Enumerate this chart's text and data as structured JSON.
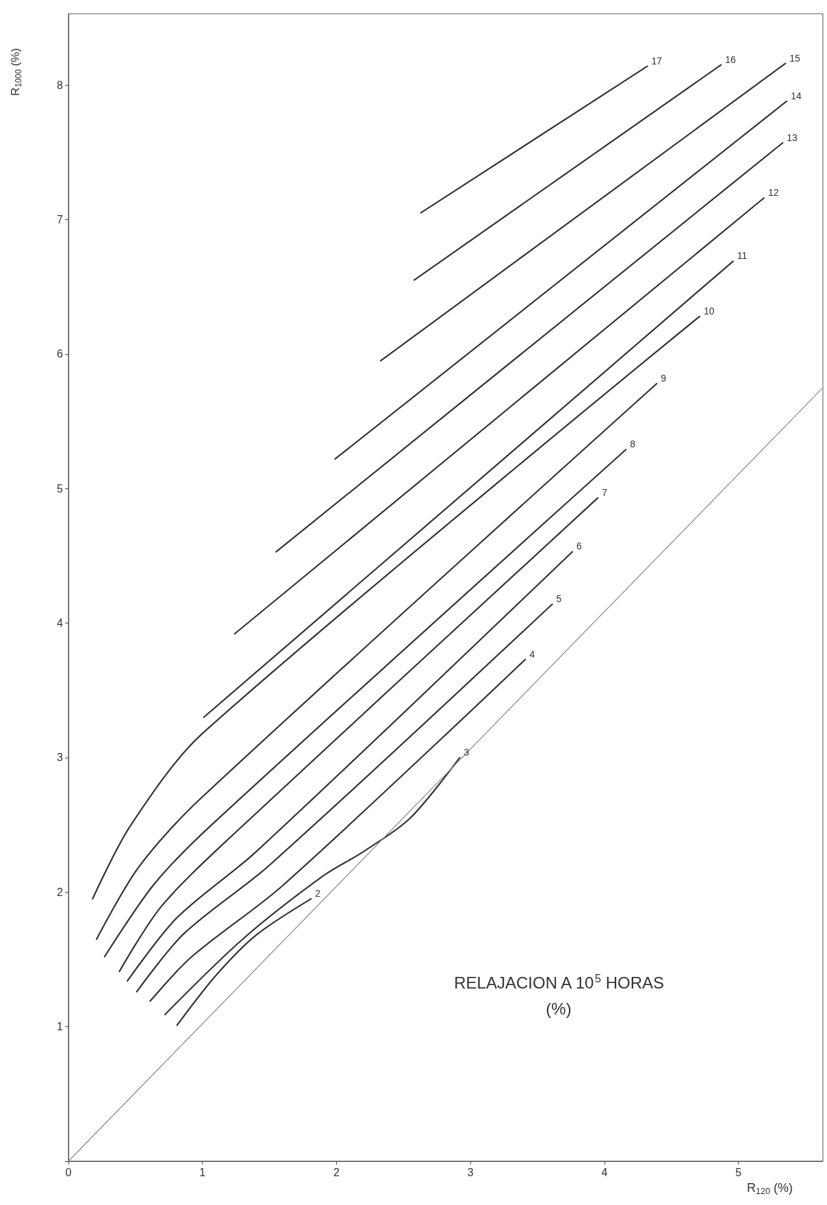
{
  "chart_data": {
    "type": "line",
    "xlabel": "R$_{120}$ (%)",
    "ylabel": "R$_{1000}$ (%)",
    "marker": "none",
    "grid": false,
    "legend": false,
    "xlim": [
      0,
      5.63
    ],
    "ylim": [
      0,
      8.53
    ],
    "xticks": [
      0,
      1,
      2,
      3,
      4,
      5
    ],
    "yticks": [
      {
        "value": 0,
        "label": null
      },
      1,
      2,
      3,
      4,
      5,
      6,
      7,
      8
    ],
    "annotations": [
      "RELAJACION A 10$^{5}$ HORAS",
      "(%)"
    ],
    "series": [
      {
        "name": "2",
        "color": "#333333",
        "x": [
          0.81,
          1.1,
          1.4,
          1.81
        ],
        "values": [
          1.01,
          1.38,
          1.68,
          1.95
        ]
      },
      {
        "name": "3",
        "color": "#333333",
        "x": [
          0.72,
          1.3,
          1.9,
          2.2,
          2.55,
          2.92
        ],
        "values": [
          1.09,
          1.65,
          2.12,
          2.3,
          2.55,
          3.0
        ]
      },
      {
        "name": "4",
        "color": "#333333",
        "x": [
          0.61,
          0.92,
          1.6,
          3.41
        ],
        "values": [
          1.19,
          1.52,
          2.05,
          3.73
        ]
      },
      {
        "name": "5",
        "color": "#333333",
        "x": [
          0.51,
          0.86,
          1.5,
          3.61
        ],
        "values": [
          1.26,
          1.69,
          2.2,
          4.14
        ]
      },
      {
        "name": "6",
        "color": "#333333",
        "x": [
          0.44,
          0.81,
          1.4,
          3.76
        ],
        "values": [
          1.34,
          1.81,
          2.3,
          4.53
        ]
      },
      {
        "name": "7",
        "color": "#333333",
        "x": [
          0.38,
          0.69,
          1.21,
          3.95
        ],
        "values": [
          1.41,
          1.89,
          2.41,
          4.93
        ]
      },
      {
        "name": "8",
        "color": "#333333",
        "x": [
          0.27,
          0.64,
          1.09,
          4.16
        ],
        "values": [
          1.52,
          2.06,
          2.52,
          5.29
        ]
      },
      {
        "name": "9",
        "color": "#333333",
        "x": [
          0.21,
          0.52,
          0.98,
          4.39
        ],
        "values": [
          1.65,
          2.18,
          2.69,
          5.78
        ]
      },
      {
        "name": "10",
        "color": "#333333",
        "x": [
          0.18,
          0.46,
          1.0,
          4.71
        ],
        "values": [
          1.95,
          2.49,
          3.18,
          6.28
        ]
      },
      {
        "name": "11",
        "color": "#333333",
        "x": [
          1.01,
          4.96
        ],
        "values": [
          3.3,
          6.69
        ]
      },
      {
        "name": "12",
        "color": "#333333",
        "x": [
          1.24,
          5.19
        ],
        "values": [
          3.92,
          7.16
        ]
      },
      {
        "name": "13",
        "color": "#333333",
        "x": [
          1.55,
          5.33
        ],
        "values": [
          4.53,
          7.57
        ]
      },
      {
        "name": "14",
        "color": "#333333",
        "x": [
          1.99,
          5.36
        ],
        "values": [
          5.22,
          7.88
        ]
      },
      {
        "name": "15",
        "color": "#333333",
        "x": [
          2.33,
          5.35
        ],
        "values": [
          5.95,
          8.16
        ]
      },
      {
        "name": "16",
        "color": "#333333",
        "x": [
          2.58,
          4.87
        ],
        "values": [
          6.55,
          8.15
        ]
      },
      {
        "name": "17",
        "color": "#333333",
        "x": [
          2.63,
          4.32
        ],
        "values": [
          7.05,
          8.14
        ]
      },
      {
        "color": "#888888",
        "x": [
          0,
          5.63
        ],
        "values": [
          0,
          5.75
        ]
      }
    ]
  }
}
